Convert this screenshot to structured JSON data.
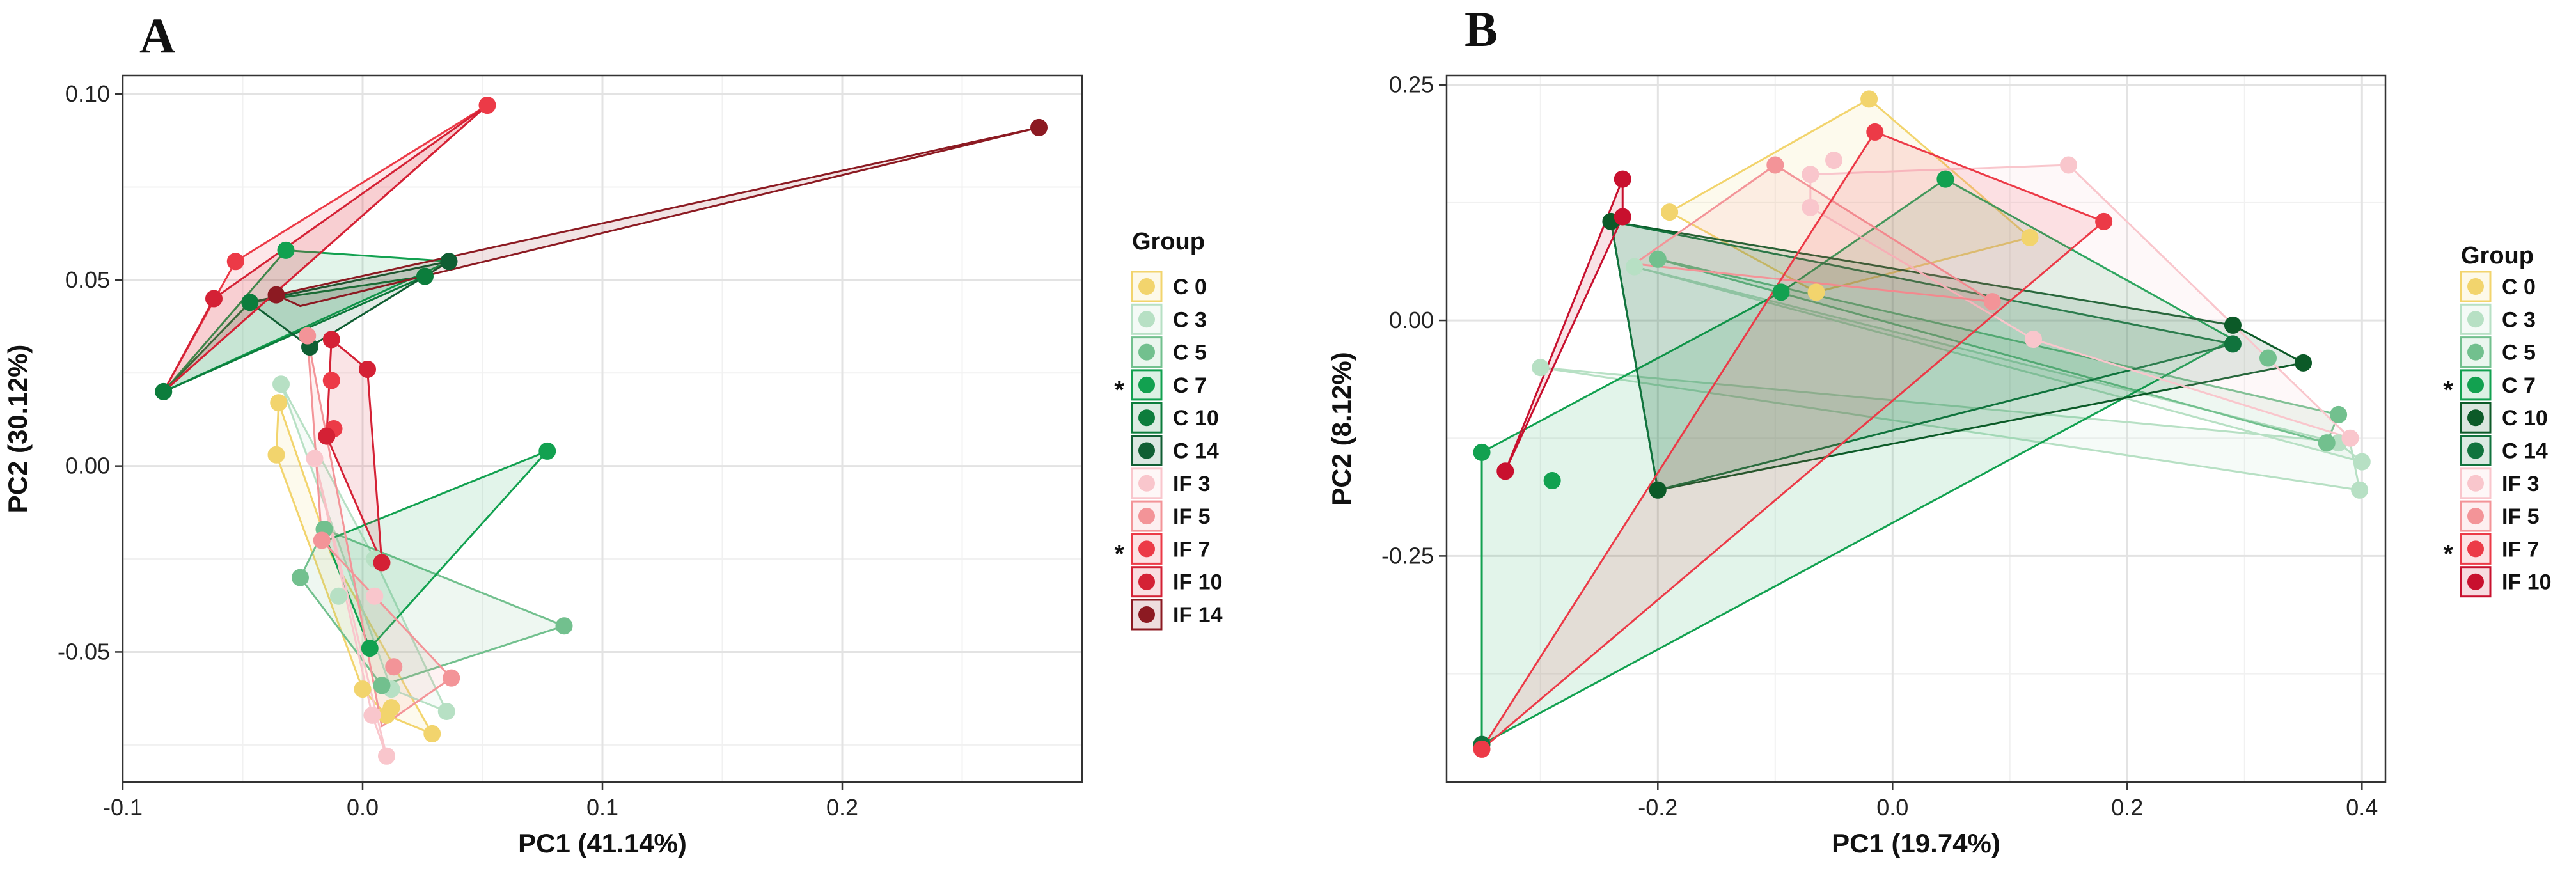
{
  "chart_data": [
    {
      "type": "scatter",
      "panel_label": "A",
      "xlabel": "PC1 (41.14%)",
      "ylabel": "PC2 (30.12%)",
      "xlim": [
        -0.1,
        0.3
      ],
      "ylim": [
        -0.085,
        0.105
      ],
      "x_ticks": [
        {
          "value": -0.1,
          "label": "-0.1"
        },
        {
          "value": 0.0,
          "label": "0.0"
        },
        {
          "value": 0.1,
          "label": "0.1"
        },
        {
          "value": 0.2,
          "label": "0.2"
        }
      ],
      "y_ticks": [
        {
          "value": -0.05,
          "label": "-0.05"
        },
        {
          "value": 0.0,
          "label": "0.00"
        },
        {
          "value": 0.05,
          "label": "0.05"
        },
        {
          "value": 0.1,
          "label": "0.10"
        }
      ],
      "grid": true,
      "legend": {
        "title": "Group",
        "position": "right"
      },
      "hulls": [
        {
          "series": "C 0",
          "path": [
            [
              -0.035,
              0.017
            ],
            [
              -0.036,
              0.003
            ],
            [
              0.0,
              -0.06
            ],
            [
              0.01,
              -0.067
            ],
            [
              0.029,
              -0.072
            ],
            [
              -0.013,
              -0.024
            ]
          ]
        },
        {
          "series": "C 3",
          "path": [
            [
              -0.034,
              0.022
            ],
            [
              0.005,
              -0.025
            ],
            [
              0.035,
              -0.066
            ],
            [
              0.012,
              -0.06
            ]
          ]
        },
        {
          "series": "C 5",
          "path": [
            [
              -0.016,
              -0.017
            ],
            [
              0.084,
              -0.043
            ],
            [
              0.008,
              -0.059
            ],
            [
              -0.026,
              -0.03
            ]
          ]
        },
        {
          "series": "C 7",
          "path": [
            [
              -0.032,
              0.058
            ],
            [
              0.036,
              0.055
            ],
            [
              -0.083,
              0.02
            ]
          ]
        },
        {
          "series": "C 7",
          "path": [
            [
              0.077,
              0.004
            ],
            [
              0.003,
              -0.049
            ],
            [
              -0.015,
              -0.02
            ]
          ]
        },
        {
          "series": "C 10",
          "path": [
            [
              -0.047,
              0.044
            ],
            [
              0.026,
              0.051
            ],
            [
              -0.083,
              0.02
            ]
          ]
        },
        {
          "series": "C 14",
          "path": [
            [
              -0.047,
              0.044
            ],
            [
              0.036,
              0.055
            ],
            [
              -0.022,
              0.032
            ]
          ]
        },
        {
          "series": "IF 3",
          "path": [
            [
              -0.02,
              0.002
            ],
            [
              0.01,
              -0.078
            ],
            [
              0.004,
              -0.067
            ]
          ]
        },
        {
          "series": "IF 5",
          "path": [
            [
              -0.017,
              -0.02
            ],
            [
              0.037,
              -0.057
            ],
            [
              0.008,
              -0.07
            ],
            [
              -0.023,
              0.035
            ]
          ]
        },
        {
          "series": "IF 7",
          "path": [
            [
              -0.053,
              0.055
            ],
            [
              0.052,
              0.097
            ],
            [
              -0.083,
              0.02
            ]
          ]
        },
        {
          "series": "IF 10",
          "path": [
            [
              -0.062,
              0.045
            ],
            [
              0.052,
              0.097
            ],
            [
              -0.083,
              0.02
            ]
          ]
        },
        {
          "series": "IF 10",
          "path": [
            [
              -0.013,
              0.034
            ],
            [
              0.002,
              0.026
            ],
            [
              0.008,
              -0.026
            ],
            [
              -0.015,
              0.008
            ]
          ]
        },
        {
          "series": "IF 14",
          "path": [
            [
              -0.036,
              0.046
            ],
            [
              0.282,
              0.091
            ],
            [
              -0.026,
              0.043
            ]
          ]
        }
      ],
      "series": [
        {
          "name": "C 0",
          "color": "#f2d46d",
          "star": false,
          "points": [
            [
              -0.035,
              0.017
            ],
            [
              -0.036,
              0.003
            ],
            [
              0.0,
              -0.06
            ],
            [
              0.01,
              -0.067
            ],
            [
              0.029,
              -0.072
            ],
            [
              0.012,
              -0.065
            ]
          ]
        },
        {
          "name": "C 3",
          "color": "#b7e0c4",
          "star": false,
          "points": [
            [
              -0.034,
              0.022
            ],
            [
              0.005,
              -0.025
            ],
            [
              0.035,
              -0.066
            ],
            [
              0.012,
              -0.06
            ],
            [
              -0.01,
              -0.035
            ]
          ]
        },
        {
          "name": "C 5",
          "color": "#72c08e",
          "star": false,
          "points": [
            [
              -0.016,
              -0.017
            ],
            [
              0.084,
              -0.043
            ],
            [
              0.008,
              -0.059
            ],
            [
              -0.026,
              -0.03
            ]
          ]
        },
        {
          "name": "C 7",
          "color": "#12a150",
          "star": true,
          "points": [
            [
              -0.032,
              0.058
            ],
            [
              0.077,
              0.004
            ],
            [
              0.003,
              -0.049
            ]
          ]
        },
        {
          "name": "C 10",
          "color": "#0c7d3c",
          "star": false,
          "points": [
            [
              -0.047,
              0.044
            ],
            [
              0.026,
              0.051
            ],
            [
              -0.083,
              0.02
            ]
          ]
        },
        {
          "name": "C 14",
          "color": "#105e33",
          "star": false,
          "points": [
            [
              0.036,
              0.055
            ],
            [
              -0.022,
              0.032
            ]
          ]
        },
        {
          "name": "IF 3",
          "color": "#f9c6cc",
          "star": false,
          "points": [
            [
              0.004,
              -0.067
            ],
            [
              0.01,
              -0.078
            ],
            [
              0.005,
              -0.035
            ],
            [
              -0.02,
              0.002
            ]
          ]
        },
        {
          "name": "IF 5",
          "color": "#f39498",
          "star": false,
          "points": [
            [
              0.037,
              -0.057
            ],
            [
              0.013,
              -0.054
            ],
            [
              -0.017,
              -0.02
            ],
            [
              -0.023,
              0.035
            ]
          ]
        },
        {
          "name": "IF 7",
          "color": "#ec3a47",
          "star": true,
          "points": [
            [
              -0.053,
              0.055
            ],
            [
              0.052,
              0.097
            ],
            [
              -0.013,
              0.023
            ],
            [
              -0.012,
              0.01
            ]
          ]
        },
        {
          "name": "IF 10",
          "color": "#d42135",
          "star": false,
          "points": [
            [
              -0.062,
              0.045
            ],
            [
              -0.013,
              0.034
            ],
            [
              0.002,
              0.026
            ],
            [
              -0.015,
              0.008
            ],
            [
              0.008,
              -0.026
            ]
          ]
        },
        {
          "name": "IF 14",
          "color": "#8c1a22",
          "star": false,
          "points": [
            [
              0.282,
              0.091
            ],
            [
              -0.036,
              0.046
            ]
          ]
        }
      ]
    },
    {
      "type": "scatter",
      "panel_label": "B",
      "xlabel": "PC1 (19.74%)",
      "ylabel": "PC2 (8.12%)",
      "xlim": [
        -0.38,
        0.42
      ],
      "ylim": [
        -0.49,
        0.26
      ],
      "x_ticks": [
        {
          "value": -0.2,
          "label": "-0.2"
        },
        {
          "value": 0.0,
          "label": "0.0"
        },
        {
          "value": 0.2,
          "label": "0.2"
        },
        {
          "value": 0.4,
          "label": "0.4"
        }
      ],
      "y_ticks": [
        {
          "value": -0.25,
          "label": "-0.25"
        },
        {
          "value": 0.0,
          "label": "0.00"
        },
        {
          "value": 0.25,
          "label": "0.25"
        }
      ],
      "grid": true,
      "legend": {
        "title": "Group",
        "position": "right"
      },
      "hulls": [
        {
          "series": "C 0",
          "path": [
            [
              -0.02,
              0.235
            ],
            [
              0.117,
              0.088
            ],
            [
              -0.065,
              0.03
            ],
            [
              -0.19,
              0.115
            ]
          ]
        },
        {
          "series": "C 3",
          "path": [
            [
              -0.3,
              -0.05
            ],
            [
              0.398,
              -0.18
            ],
            [
              0.39,
              -0.13
            ]
          ]
        },
        {
          "series": "C 3",
          "path": [
            [
              -0.22,
              0.057
            ],
            [
              0.38,
              -0.13
            ],
            [
              0.4,
              -0.15
            ]
          ]
        },
        {
          "series": "C 5",
          "path": [
            [
              -0.2,
              0.065
            ],
            [
              0.38,
              -0.1
            ],
            [
              0.37,
              -0.13
            ]
          ]
        },
        {
          "series": "C 7",
          "path": [
            [
              0.045,
              0.15
            ],
            [
              0.29,
              -0.02
            ],
            [
              -0.35,
              -0.45
            ],
            [
              -0.35,
              -0.14
            ],
            [
              -0.095,
              0.03
            ]
          ]
        },
        {
          "series": "C 10",
          "path": [
            [
              -0.24,
              0.105
            ],
            [
              0.29,
              -0.005
            ],
            [
              0.35,
              -0.045
            ],
            [
              -0.2,
              -0.18
            ]
          ]
        },
        {
          "series": "C 14",
          "path": [
            [
              -0.2,
              -0.18
            ],
            [
              0.29,
              -0.025
            ],
            [
              -0.24,
              0.105
            ]
          ]
        },
        {
          "series": "IF 3",
          "path": [
            [
              -0.07,
              0.155
            ],
            [
              0.15,
              0.165
            ],
            [
              0.39,
              -0.125
            ],
            [
              0.12,
              -0.02
            ],
            [
              -0.07,
              0.12
            ]
          ]
        },
        {
          "series": "IF 5",
          "path": [
            [
              -0.1,
              0.165
            ],
            [
              0.085,
              0.02
            ],
            [
              -0.22,
              0.06
            ]
          ]
        },
        {
          "series": "IF 7",
          "path": [
            [
              -0.015,
              0.2
            ],
            [
              0.18,
              0.105
            ],
            [
              -0.35,
              -0.455
            ]
          ]
        },
        {
          "series": "IF 10",
          "path": [
            [
              -0.23,
              0.15
            ],
            [
              -0.23,
              0.11
            ],
            [
              -0.33,
              -0.16
            ]
          ]
        }
      ],
      "series": [
        {
          "name": "C 0",
          "color": "#f2d46d",
          "star": false,
          "points": [
            [
              -0.02,
              0.235
            ],
            [
              0.117,
              0.088
            ],
            [
              -0.065,
              0.03
            ],
            [
              -0.19,
              0.115
            ]
          ]
        },
        {
          "name": "C 3",
          "color": "#b7e0c4",
          "star": false,
          "points": [
            [
              -0.3,
              -0.05
            ],
            [
              -0.22,
              0.057
            ],
            [
              0.398,
              -0.18
            ],
            [
              0.4,
              -0.15
            ],
            [
              0.38,
              -0.13
            ]
          ]
        },
        {
          "name": "C 5",
          "color": "#72c08e",
          "star": false,
          "points": [
            [
              -0.2,
              0.065
            ],
            [
              0.38,
              -0.1
            ],
            [
              0.37,
              -0.13
            ],
            [
              0.32,
              -0.04
            ]
          ]
        },
        {
          "name": "C 7",
          "color": "#12a150",
          "star": true,
          "points": [
            [
              0.045,
              0.15
            ],
            [
              -0.095,
              0.03
            ],
            [
              -0.35,
              -0.14
            ],
            [
              -0.29,
              -0.17
            ]
          ]
        },
        {
          "name": "C 10",
          "color": "#0c5a28",
          "star": false,
          "points": [
            [
              -0.24,
              0.105
            ],
            [
              0.29,
              -0.005
            ],
            [
              0.35,
              -0.045
            ],
            [
              -0.2,
              -0.18
            ]
          ]
        },
        {
          "name": "C 14",
          "color": "#10733d",
          "star": false,
          "points": [
            [
              0.29,
              -0.025
            ],
            [
              -0.35,
              -0.45
            ]
          ]
        },
        {
          "name": "IF 3",
          "color": "#f9c6cc",
          "star": false,
          "points": [
            [
              -0.07,
              0.155
            ],
            [
              0.15,
              0.165
            ],
            [
              0.39,
              -0.125
            ],
            [
              0.12,
              -0.02
            ],
            [
              -0.07,
              0.12
            ],
            [
              -0.05,
              0.17
            ]
          ]
        },
        {
          "name": "IF 5",
          "color": "#f39498",
          "star": false,
          "points": [
            [
              -0.1,
              0.165
            ],
            [
              0.085,
              0.02
            ]
          ]
        },
        {
          "name": "IF 7",
          "color": "#ec3a47",
          "star": true,
          "points": [
            [
              -0.015,
              0.2
            ],
            [
              0.18,
              0.105
            ],
            [
              -0.35,
              -0.455
            ]
          ]
        },
        {
          "name": "IF 10",
          "color": "#c8102e",
          "star": false,
          "points": [
            [
              -0.23,
              0.15
            ],
            [
              -0.23,
              0.11
            ],
            [
              -0.33,
              -0.16
            ]
          ]
        }
      ]
    }
  ]
}
